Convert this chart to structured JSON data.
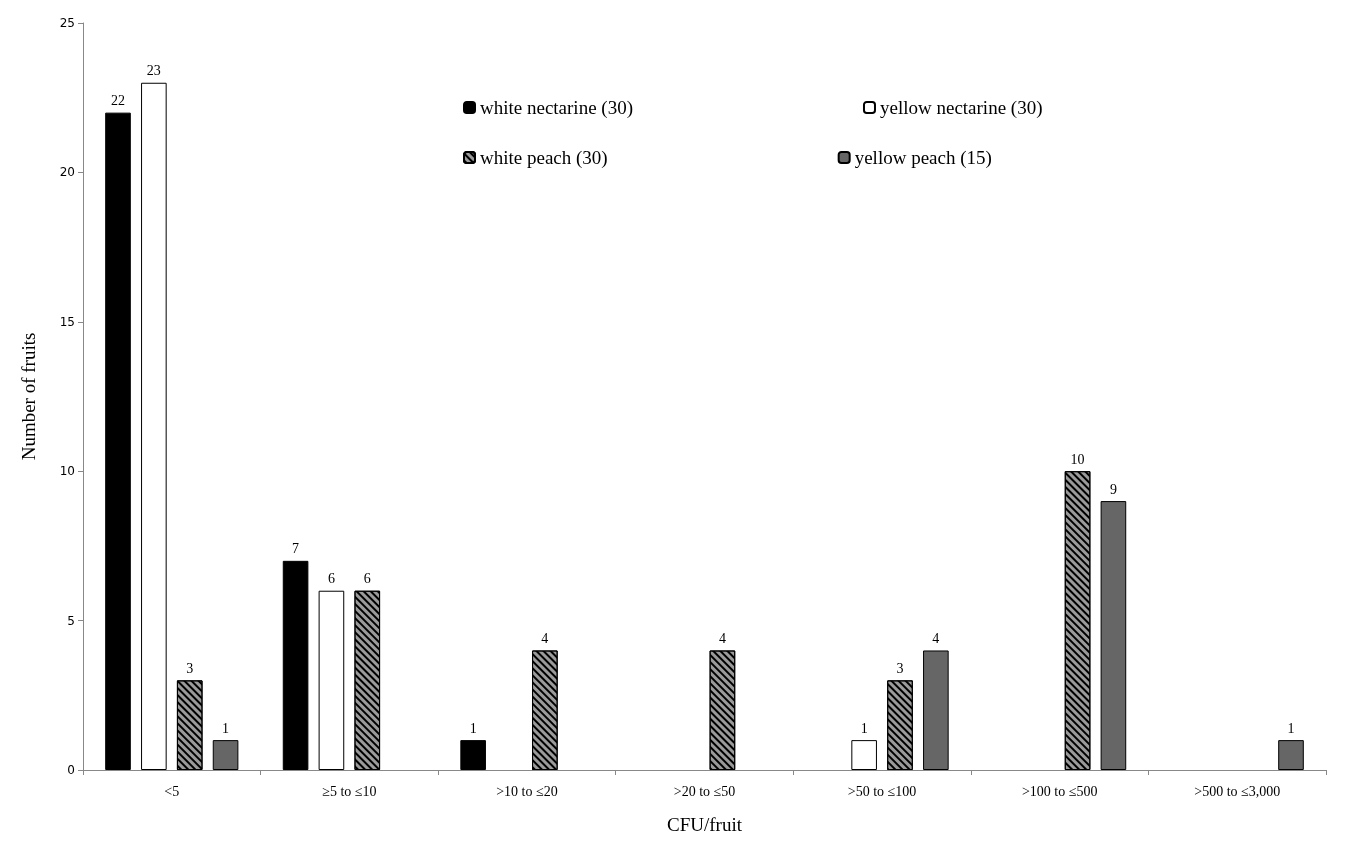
{
  "chart_data": {
    "type": "bar",
    "xlabel": "CFU/fruit",
    "ylabel": "Number of fruits",
    "categories": [
      "<5",
      "≥5 to ≤10",
      ">10 to ≤20",
      ">20 to ≤50",
      ">50 to ≤100",
      ">100 to ≤500",
      ">500 to ≤3,000"
    ],
    "series": [
      {
        "name": "white nectarine (30)",
        "color": "#000000",
        "values": [
          22,
          7,
          1,
          0,
          0,
          0,
          0
        ],
        "value_labels": [
          "22",
          "7",
          "1",
          null,
          null,
          null,
          null
        ]
      },
      {
        "name": "yellow nectarine (30)",
        "color": "#ffffff",
        "values": [
          23,
          6,
          0,
          0,
          1,
          0,
          0
        ],
        "value_labels": [
          "23",
          "6",
          null,
          null,
          "1",
          null,
          null
        ]
      },
      {
        "name": "white peach (30)",
        "color": "#9a9a9a",
        "values": [
          3,
          6,
          4,
          4,
          3,
          10,
          0
        ],
        "value_labels": [
          "3",
          "6",
          "4",
          "4",
          "3",
          "10",
          null
        ]
      },
      {
        "name": "yellow peach (15)",
        "color": "#666666",
        "values": [
          1,
          0,
          0,
          0,
          4,
          9,
          1
        ],
        "value_labels": [
          "1",
          null,
          null,
          null,
          "4",
          "9",
          "1"
        ]
      }
    ],
    "ylim": [
      0,
      25
    ],
    "yticks": [
      0,
      5,
      10,
      15,
      20,
      25
    ],
    "grid": false,
    "legend": "top right"
  }
}
